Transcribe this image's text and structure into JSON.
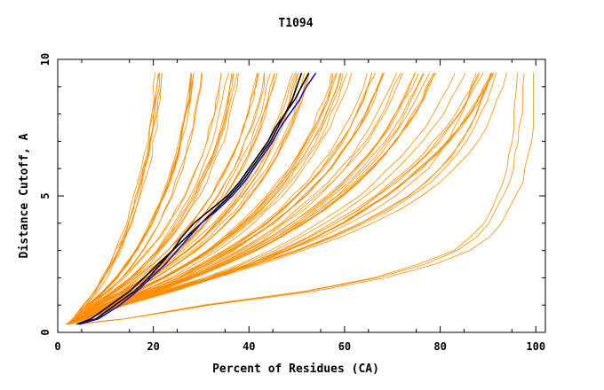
{
  "chart_data": {
    "type": "line",
    "title": "T1094",
    "xlabel": "Percent of Residues (CA)",
    "ylabel": "Distance Cutoff, A",
    "xlim": [
      0,
      102
    ],
    "ylim": [
      0,
      10
    ],
    "x_ticks": [
      0,
      20,
      40,
      60,
      80,
      100
    ],
    "y_ticks": [
      0,
      5,
      10
    ],
    "colors": {
      "background_series": "#ff8c00",
      "black_series": "#000000",
      "blue_series": "#1010c8"
    },
    "cutoffs": [
      0.3,
      0.5,
      1.0,
      1.5,
      2.0,
      2.5,
      3.0,
      3.5,
      4.0,
      4.5,
      5.0,
      5.5,
      6.0,
      6.5,
      7.0,
      7.5,
      8.0,
      8.5,
      9.0,
      9.5
    ],
    "highlighted_series": [
      {
        "color": "black",
        "x": [
          4,
          7,
          11,
          15,
          18,
          21,
          24,
          27,
          30,
          33,
          36,
          38.5,
          40.5,
          42.5,
          44.5,
          46,
          47.5,
          49,
          50,
          51
        ]
      },
      {
        "color": "black",
        "x": [
          4.5,
          8,
          12,
          16,
          19,
          21.5,
          24,
          26,
          28.5,
          32,
          35.5,
          38,
          40,
          42,
          44,
          45.5,
          47.5,
          49.5,
          51,
          52.5
        ]
      },
      {
        "color": "blue",
        "x": [
          4.5,
          8.5,
          13,
          16.5,
          19.5,
          22.5,
          25,
          27.5,
          30,
          33.5,
          36.5,
          39,
          41,
          43,
          45,
          46.5,
          48.5,
          50.5,
          52,
          54
        ]
      }
    ],
    "orange_series_groups": [
      {
        "count": 6,
        "x": [
          2.2,
          3.6,
          5.6,
          7.8,
          9.6,
          11.1,
          12.5,
          13.7,
          14.8,
          15.7,
          16.6,
          17.4,
          18.1,
          18.8,
          19.3,
          19.8,
          20.2,
          20.6,
          20.9,
          21.2
        ]
      },
      {
        "count": 8,
        "x": [
          2.2,
          3.8,
          6.5,
          9.7,
          12.4,
          14.7,
          16.7,
          18.4,
          20.0,
          21.3,
          22.5,
          23.6,
          24.6,
          25.5,
          26.2,
          26.9,
          27.4,
          28.0,
          28.4,
          28.8
        ]
      },
      {
        "count": 8,
        "x": [
          2.2,
          4.0,
          7.3,
          11.4,
          14.9,
          17.9,
          20.5,
          22.8,
          24.7,
          26.5,
          28.1,
          29.5,
          30.8,
          31.9,
          32.9,
          33.8,
          34.5,
          35.2,
          35.7,
          36.3
        ]
      },
      {
        "count": 9,
        "x": [
          2.2,
          4.2,
          8.1,
          13.0,
          17.3,
          21.0,
          24.2,
          27.1,
          29.5,
          31.7,
          33.6,
          35.3,
          36.9,
          38.3,
          39.5,
          40.6,
          41.5,
          42.4,
          43.1,
          43.7
        ]
      },
      {
        "count": 9,
        "x": [
          2.2,
          4.4,
          8.9,
          14.7,
          19.8,
          24.1,
          27.9,
          31.3,
          34.2,
          36.8,
          39.1,
          41.2,
          43.1,
          44.7,
          46.1,
          47.4,
          48.6,
          49.6,
          50.4,
          51.2
        ]
      },
      {
        "count": 9,
        "x": [
          2.2,
          4.7,
          9.8,
          16.3,
          22.2,
          27.2,
          31.7,
          35.6,
          39.0,
          42.0,
          44.7,
          47.1,
          49.2,
          51.1,
          52.8,
          54.3,
          55.6,
          56.8,
          57.8,
          58.7
        ]
      },
      {
        "count": 8,
        "x": [
          2.2,
          4.9,
          10.6,
          18.0,
          24.7,
          30.4,
          35.4,
          39.8,
          43.7,
          47.2,
          50.2,
          52.9,
          55.4,
          57.5,
          59.5,
          61.2,
          62.7,
          64.0,
          65.1,
          66.2
        ]
      },
      {
        "count": 8,
        "x": [
          2.2,
          5.1,
          11.4,
          19.6,
          27.1,
          33.5,
          39.1,
          44.1,
          48.5,
          52.3,
          55.7,
          58.8,
          61.5,
          64.0,
          66.2,
          68.1,
          69.8,
          71.2,
          72.5,
          73.7
        ]
      },
      {
        "count": 7,
        "x": [
          2.2,
          5.3,
          12.2,
          21.3,
          29.6,
          36.6,
          42.9,
          48.4,
          53.2,
          57.5,
          61.3,
          64.7,
          67.7,
          70.4,
          72.8,
          74.9,
          76.8,
          78.4,
          79.8,
          81.1
        ]
      },
      {
        "count": 7,
        "x": [
          2.2,
          5.5,
          13.1,
          23.0,
          32.0,
          39.8,
          46.6,
          52.7,
          58.0,
          62.7,
          66.8,
          70.5,
          73.8,
          76.8,
          79.5,
          81.8,
          83.8,
          85.6,
          87.2,
          88.6
        ]
      },
      {
        "count": 5,
        "x": [
          2.2,
          5.6,
          12.8,
          22.4,
          32.5,
          42.0,
          50.5,
          58.0,
          64.3,
          69.7,
          74.2,
          78.0,
          81.1,
          83.6,
          85.6,
          87.2,
          88.6,
          89.8,
          90.8,
          91.6
        ]
      },
      {
        "count": 3,
        "x": [
          4,
          14,
          31,
          52,
          67,
          77,
          84,
          88,
          90.5,
          92.3,
          93.7,
          94.8,
          95.6,
          96.2,
          96.7,
          97.0,
          97.3,
          97.5,
          97.7,
          97.8
        ]
      }
    ]
  }
}
